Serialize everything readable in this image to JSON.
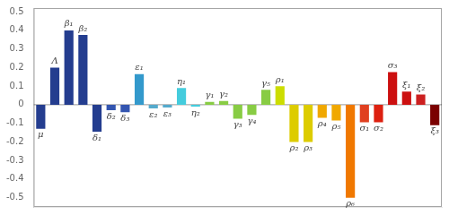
{
  "chart_data": {
    "type": "bar",
    "categories": [
      "μ",
      "Λ",
      "β₁",
      "β₂",
      "δ₁",
      "δ₂",
      "δ₃",
      "ε₁",
      "ε₂",
      "ε₃",
      "η₁",
      "η₂",
      "γ₁",
      "γ₂",
      "γ₃",
      "γ₄",
      "γ₅",
      "ρ₁",
      "ρ₂",
      "ρ₃",
      "ρ₄",
      "ρ₅",
      "ρ₆",
      "σ₁",
      "σ₂",
      "σ₃",
      "ξ₁",
      "ξ₂",
      "ξ₃"
    ],
    "values": [
      -0.13,
      0.2,
      0.4,
      0.375,
      -0.145,
      -0.03,
      -0.04,
      0.165,
      -0.02,
      -0.015,
      0.09,
      -0.01,
      0.015,
      0.02,
      -0.075,
      -0.055,
      0.08,
      0.1,
      -0.2,
      -0.2,
      -0.07,
      -0.085,
      -0.5,
      -0.095,
      -0.095,
      0.175,
      0.07,
      0.055,
      -0.11
    ],
    "colors": [
      "#243d8f",
      "#243d8f",
      "#243d8f",
      "#243d8f",
      "#243d8f",
      "#3355b0",
      "#3355b0",
      "#3399cc",
      "#55aacc",
      "#55aacc",
      "#44ccdd",
      "#44ccdd",
      "#88cc44",
      "#88cc44",
      "#88cc44",
      "#88cc44",
      "#88cc44",
      "#ccdd00",
      "#ddcc00",
      "#ddcc00",
      "#f0a800",
      "#f0a800",
      "#f07800",
      "#e04020",
      "#dd2010",
      "#cc1010",
      "#cc1010",
      "#cc2020",
      "#7a0000"
    ],
    "ylim": [
      -0.55,
      0.52
    ],
    "yticks": [
      -0.5,
      -0.4,
      -0.3,
      -0.2,
      -0.1,
      0,
      0.1,
      0.2,
      0.3,
      0.4,
      0.5
    ],
    "grid": false,
    "tick_labels": "y"
  }
}
